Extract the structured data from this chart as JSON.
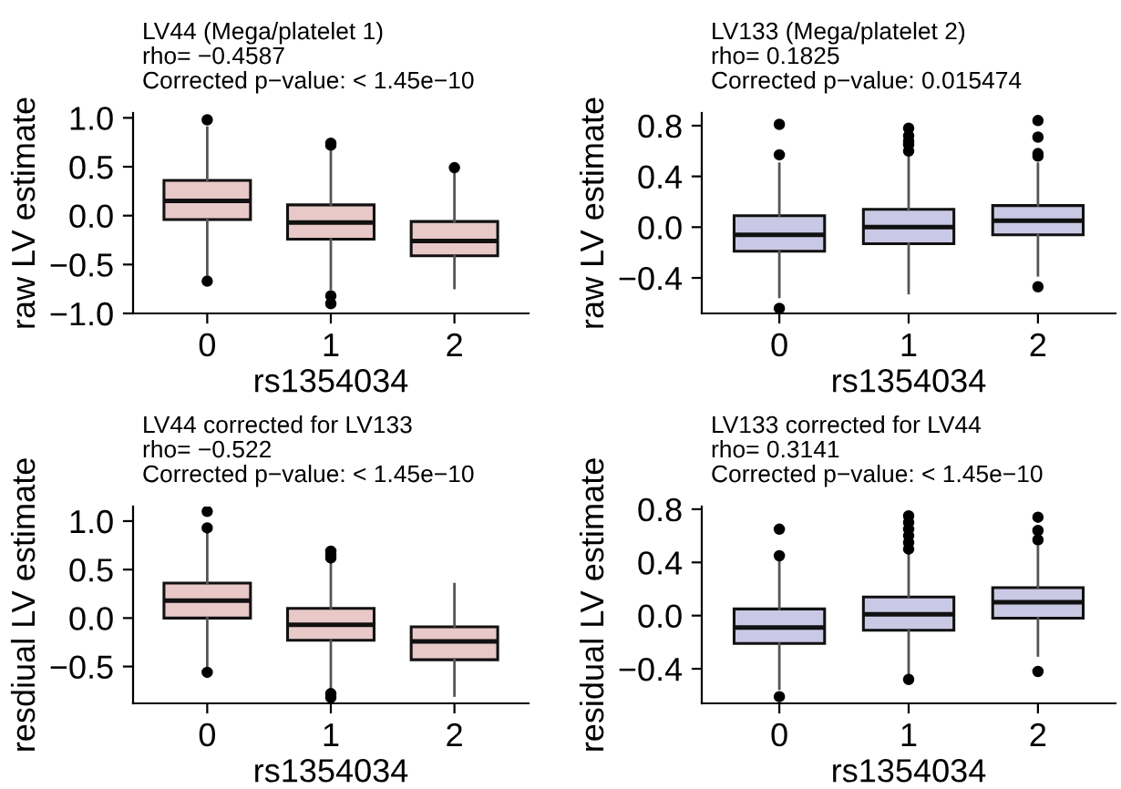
{
  "chart_data": [
    {
      "type": "box",
      "title": "LV44 (Mega/platelet 1)",
      "annotations": [
        "rho= −0.4587",
        "Corrected p−value: < 1.45e−10"
      ],
      "xlabel": "rs1354034",
      "ylabel": "raw LV estimate",
      "categories": [
        "0",
        "1",
        "2"
      ],
      "ylim": [
        -1.0,
        1.05
      ],
      "yticks": [
        {
          "value": -1.0,
          "label": "−1.0"
        },
        {
          "value": -0.5,
          "label": "−0.5"
        },
        {
          "value": 0.0,
          "label": "0.0"
        },
        {
          "value": 0.5,
          "label": "0.5"
        },
        {
          "value": 1.0,
          "label": "1.0"
        }
      ],
      "grid": false,
      "series": [
        {
          "color": "#e8c9c8",
          "boxes": [
            {
              "low": -0.6,
              "q1": -0.04,
              "median": 0.15,
              "q3": 0.36,
              "high": 0.9,
              "outliers": [
                0.98,
                -0.67
              ]
            },
            {
              "low": -0.75,
              "q1": -0.24,
              "median": -0.07,
              "q3": 0.11,
              "high": 0.65,
              "outliers": [
                0.72,
                0.74,
                -0.82,
                -0.9
              ]
            },
            {
              "low": -0.74,
              "q1": -0.41,
              "median": -0.26,
              "q3": -0.06,
              "high": 0.44,
              "outliers": [
                0.49
              ]
            }
          ]
        }
      ]
    },
    {
      "type": "box",
      "title": "LV133 (Mega/platelet 2)",
      "annotations": [
        "rho= 0.1825",
        "Corrected p−value: 0.015474"
      ],
      "xlabel": "rs1354034",
      "ylabel": "raw LV estimate",
      "categories": [
        "0",
        "1",
        "2"
      ],
      "ylim": [
        -0.68,
        0.9
      ],
      "yticks": [
        {
          "value": -0.4,
          "label": "−0.4"
        },
        {
          "value": 0.0,
          "label": "0.0"
        },
        {
          "value": 0.4,
          "label": "0.4"
        },
        {
          "value": 0.8,
          "label": "0.8"
        }
      ],
      "grid": false,
      "series": [
        {
          "color": "#c9c8e5",
          "boxes": [
            {
              "low": -0.55,
              "q1": -0.19,
              "median": -0.06,
              "q3": 0.09,
              "high": 0.5,
              "outliers": [
                0.81,
                0.57,
                -0.64
              ]
            },
            {
              "low": -0.52,
              "q1": -0.13,
              "median": 0.0,
              "q3": 0.14,
              "high": 0.55,
              "outliers": [
                0.6,
                0.65,
                0.68,
                0.72,
                0.78
              ]
            },
            {
              "low": -0.38,
              "q1": -0.06,
              "median": 0.05,
              "q3": 0.17,
              "high": 0.5,
              "outliers": [
                0.56,
                0.58,
                0.71,
                0.84,
                -0.47
              ]
            }
          ]
        }
      ]
    },
    {
      "type": "box",
      "title": "LV44 corrected for LV133",
      "annotations": [
        "rho= −0.522",
        "Corrected p−value: < 1.45e−10"
      ],
      "xlabel": "rs1354034",
      "ylabel": "resdiual LV estimate",
      "categories": [
        "0",
        "1",
        "2"
      ],
      "ylim": [
        -0.88,
        1.15
      ],
      "yticks": [
        {
          "value": -0.5,
          "label": "−0.5"
        },
        {
          "value": 0.0,
          "label": "0.0"
        },
        {
          "value": 0.5,
          "label": "0.5"
        },
        {
          "value": 1.0,
          "label": "1.0"
        }
      ],
      "grid": false,
      "series": [
        {
          "color": "#e8c9c8",
          "boxes": [
            {
              "low": -0.52,
              "q1": 0.0,
              "median": 0.18,
              "q3": 0.36,
              "high": 0.88,
              "outliers": [
                1.1,
                0.93,
                -0.56
              ]
            },
            {
              "low": -0.72,
              "q1": -0.23,
              "median": -0.07,
              "q3": 0.1,
              "high": 0.58,
              "outliers": [
                0.62,
                0.65,
                0.69,
                -0.78,
                -0.82
              ]
            },
            {
              "low": -0.8,
              "q1": -0.43,
              "median": -0.24,
              "q3": -0.09,
              "high": 0.35
            }
          ]
        }
      ]
    },
    {
      "type": "box",
      "title": "LV133 corrected for LV44",
      "annotations": [
        "rho= 0.3141",
        "Corrected p−value: < 1.45e−10"
      ],
      "xlabel": "rs1354034",
      "ylabel": "residual LV estimate",
      "categories": [
        "0",
        "1",
        "2"
      ],
      "ylim": [
        -0.66,
        0.82
      ],
      "yticks": [
        {
          "value": -0.4,
          "label": "−0.4"
        },
        {
          "value": 0.0,
          "label": "0.0"
        },
        {
          "value": 0.4,
          "label": "0.4"
        },
        {
          "value": 0.8,
          "label": "0.8"
        }
      ],
      "grid": false,
      "series": [
        {
          "color": "#c9c8e5",
          "boxes": [
            {
              "low": -0.55,
              "q1": -0.21,
              "median": -0.09,
              "q3": 0.05,
              "high": 0.42,
              "outliers": [
                0.65,
                0.45,
                -0.61
              ]
            },
            {
              "low": -0.45,
              "q1": -0.11,
              "median": 0.01,
              "q3": 0.14,
              "high": 0.48,
              "outliers": [
                0.5,
                0.55,
                0.6,
                0.65,
                0.7,
                0.75,
                -0.48
              ]
            },
            {
              "low": -0.3,
              "q1": -0.02,
              "median": 0.1,
              "q3": 0.21,
              "high": 0.52,
              "outliers": [
                0.57,
                0.64,
                0.74,
                -0.42
              ]
            }
          ]
        }
      ]
    }
  ]
}
